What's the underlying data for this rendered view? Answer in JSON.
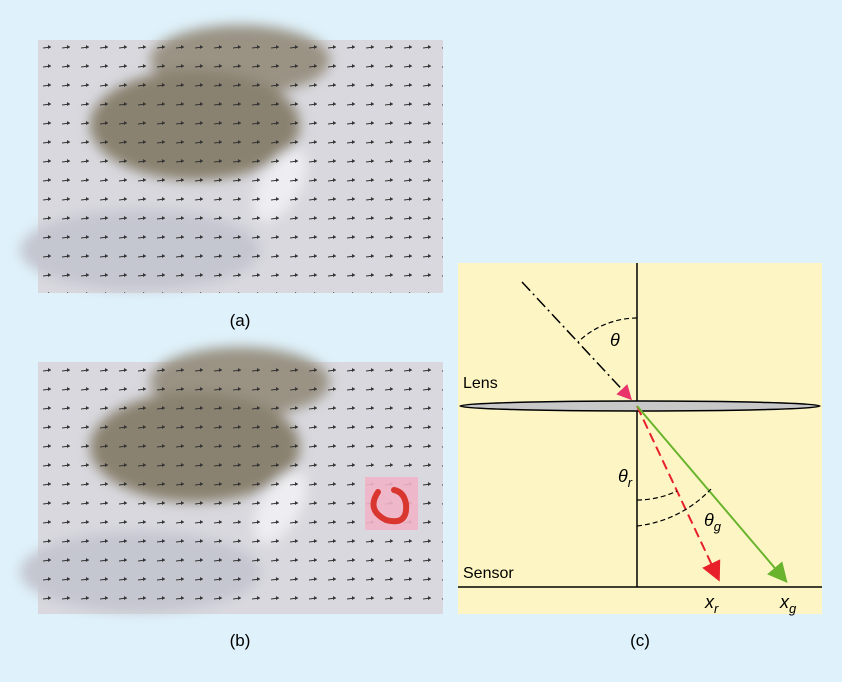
{
  "panels": [
    {
      "caption": "(a)"
    },
    {
      "caption": "(b)"
    },
    {
      "caption": "(c)"
    }
  ],
  "diagram": {
    "lens_label": "Lens",
    "sensor_label": "Sensor",
    "angle": "θ",
    "angle_r": {
      "symbol": "θ",
      "subscript": "r"
    },
    "angle_g": {
      "symbol": "θ",
      "subscript": "g"
    },
    "x_r": {
      "symbol": "x",
      "subscript": "r"
    },
    "x_g": {
      "symbol": "x",
      "subscript": "g"
    }
  }
}
